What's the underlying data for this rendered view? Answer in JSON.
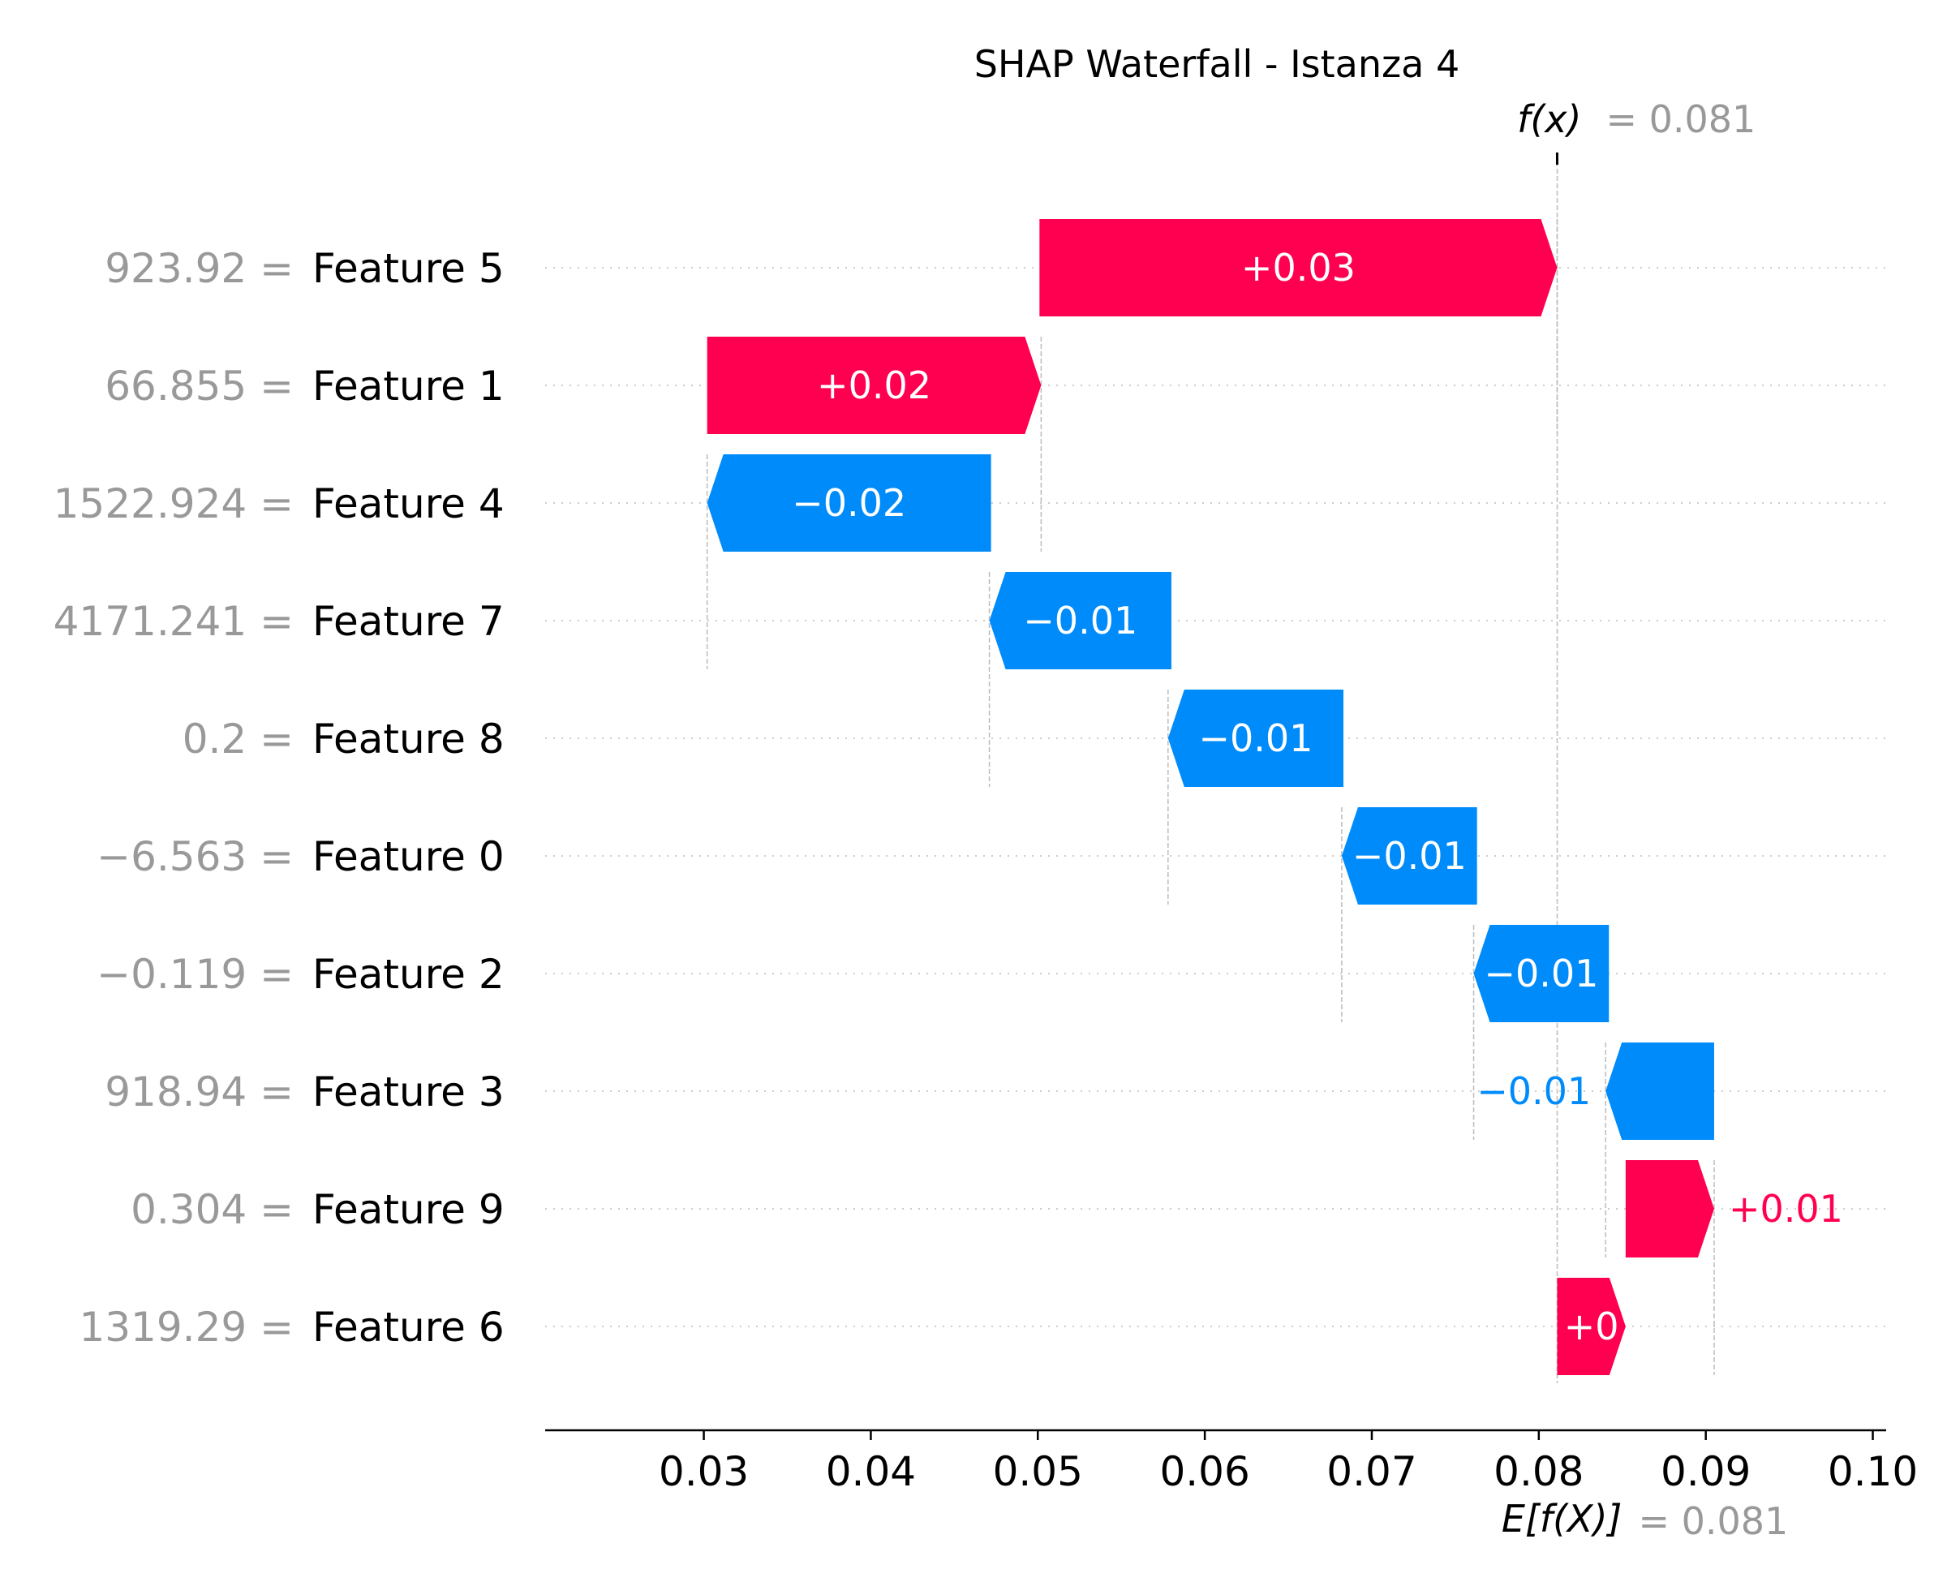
{
  "chart_data": {
    "type": "waterfall",
    "title": "SHAP Waterfall - Istanza 4",
    "fx_label": "f(x)",
    "fx_value": "= 0.081",
    "efx_label": "E[f(X)]",
    "efx_value": "= 0.081",
    "xlim": [
      0.0205,
      0.1008
    ],
    "xticks": [
      0.03,
      0.04,
      0.05,
      0.06,
      0.07,
      0.08,
      0.09,
      0.1
    ],
    "xtick_labels": [
      "0.03",
      "0.04",
      "0.05",
      "0.06",
      "0.07",
      "0.08",
      "0.09",
      "0.10"
    ],
    "features": [
      {
        "value_label": "923.92",
        "feature": "Feature 5",
        "start": 0.0501,
        "end": 0.0811,
        "label": "+0.03",
        "sign": "pos"
      },
      {
        "value_label": "66.855",
        "feature": "Feature 1",
        "start": 0.0302,
        "end": 0.0502,
        "label": "+0.02",
        "sign": "pos"
      },
      {
        "value_label": "1522.924",
        "feature": "Feature 4",
        "start": 0.0472,
        "end": 0.0302,
        "label": "−0.02",
        "sign": "neg"
      },
      {
        "value_label": "4171.241",
        "feature": "Feature 7",
        "start": 0.058,
        "end": 0.0471,
        "label": "−0.01",
        "sign": "neg"
      },
      {
        "value_label": "0.2",
        "feature": "Feature 8",
        "start": 0.0683,
        "end": 0.0578,
        "label": "−0.01",
        "sign": "neg"
      },
      {
        "value_label": "−6.563",
        "feature": "Feature 0",
        "start": 0.0763,
        "end": 0.0682,
        "label": "−0.01",
        "sign": "neg"
      },
      {
        "value_label": "−0.119",
        "feature": "Feature 2",
        "start": 0.0842,
        "end": 0.0761,
        "label": "−0.01",
        "sign": "neg"
      },
      {
        "value_label": "918.94",
        "feature": "Feature 3",
        "start": 0.0905,
        "end": 0.084,
        "label": "−0.01",
        "sign": "neg"
      },
      {
        "value_label": "0.304",
        "feature": "Feature 9",
        "start": 0.0852,
        "end": 0.0905,
        "label": "+0.01",
        "sign": "pos"
      },
      {
        "value_label": "1319.29",
        "feature": "Feature 6",
        "start": 0.0811,
        "end": 0.0852,
        "label": "+0",
        "sign": "pos"
      }
    ],
    "colors": {
      "positive": "#ff0051",
      "negative": "#008bfb",
      "value_gray": "#999999",
      "text": "#000000"
    }
  }
}
